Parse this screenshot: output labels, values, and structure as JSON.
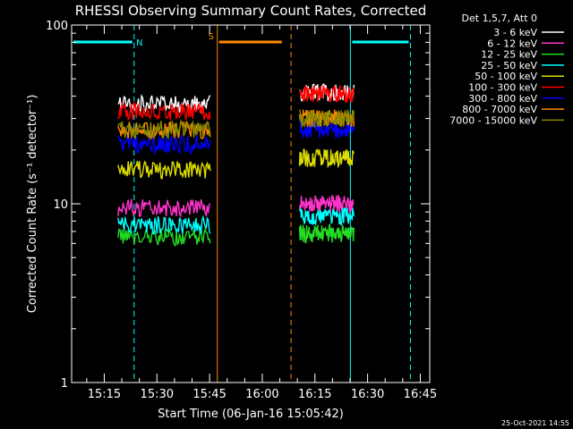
{
  "chart_data": {
    "type": "line",
    "title": "RHESSI Observing Summary Count Rates, Corrected",
    "xlabel": "Start Time (06-Jan-16 15:05:42)",
    "ylabel": "Corrected Count Rate (s⁻¹ detector⁻¹)",
    "yscale": "log",
    "ylim": [
      1,
      100
    ],
    "xlim_minutes": [
      0,
      102
    ],
    "x_unit": "minutes since 15:05:42",
    "x_ticks": [
      {
        "label": "15:15",
        "min": 9.3
      },
      {
        "label": "15:30",
        "min": 24.3
      },
      {
        "label": "15:45",
        "min": 39.3
      },
      {
        "label": "16:00",
        "min": 54.3
      },
      {
        "label": "16:15",
        "min": 69.3
      },
      {
        "label": "16:30",
        "min": 84.3
      },
      {
        "label": "16:45",
        "min": 99.3
      }
    ],
    "y_ticks": [
      {
        "label": "1",
        "value": 1
      },
      {
        "label": "10",
        "value": 10
      },
      {
        "label": "100",
        "value": 100
      }
    ],
    "legend_header": "Det 1,5,7, Att 0",
    "legend_position": "right",
    "segments": [
      [
        13.2,
        39.5
      ],
      [
        64.9,
        80.4
      ]
    ],
    "series": [
      {
        "name": "3 - 6 keV",
        "color": "#ffffff",
        "values": [
          36,
          42
        ]
      },
      {
        "name": "6 - 12 keV",
        "color": "#ff33cc",
        "values": [
          9.5,
          10
        ]
      },
      {
        "name": "12 - 25 keV",
        "color": "#22dd22",
        "values": [
          6.5,
          6.8
        ]
      },
      {
        "name": "25 - 50 keV",
        "color": "#00ffff",
        "values": [
          7.6,
          8.5
        ]
      },
      {
        "name": "50 - 100 keV",
        "color": "#dddd00",
        "values": [
          15.5,
          18
        ]
      },
      {
        "name": "100 - 300 keV",
        "color": "#ff0000",
        "values": [
          33,
          41
        ]
      },
      {
        "name": "300 - 800 keV",
        "color": "#0000ff",
        "values": [
          21.5,
          26
        ]
      },
      {
        "name": "800 - 7000 keV",
        "color": "#ff8800",
        "values": [
          26,
          30
        ]
      },
      {
        "name": "7000 - 15000 keV",
        "color": "#888800",
        "values": [
          26,
          30
        ]
      }
    ],
    "annotations": [
      {
        "label": "N",
        "color": "#00ffff",
        "solid_min": 0,
        "dashed_min": 17.8,
        "bar": [
          0,
          17.8
        ]
      },
      {
        "label": "S",
        "color": "#ff8800",
        "solid_min": 41.5,
        "dashed_min": 62.5,
        "bar": [
          41.5,
          62.5
        ]
      },
      {
        "label": "",
        "color": "#00ffff",
        "solid_min": 79.4,
        "dashed_min": 96.5,
        "bar": [
          79.4,
          96.5
        ]
      }
    ],
    "grid": false
  },
  "footer": {
    "timestamp": "25-Oct-2021 14:55"
  }
}
